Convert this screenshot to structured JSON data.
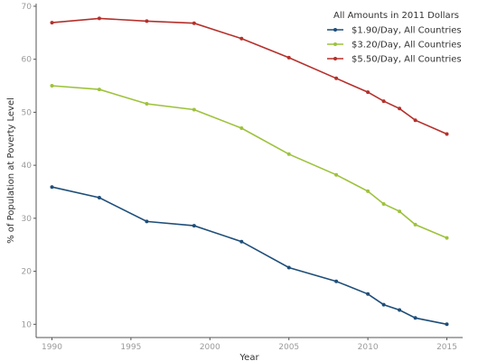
{
  "chart_data": {
    "type": "line",
    "title": "",
    "xlabel": "Year",
    "ylabel": "% of Population at Poverty Level",
    "xlim": [
      1989,
      2016
    ],
    "ylim": [
      7.5,
      70.5
    ],
    "xticks": [
      1990,
      1995,
      2000,
      2005,
      2010,
      2015
    ],
    "yticks": [
      10,
      20,
      30,
      40,
      50,
      60,
      70
    ],
    "grid": false,
    "legend": {
      "title": "All Amounts in 2011 Dollars",
      "placement": "top-right"
    },
    "series": [
      {
        "name": "$1.90/Day, All Countries",
        "color": "#1f4e79",
        "x": [
          1990,
          1993,
          1996,
          1999,
          2002,
          2005,
          2008,
          2010,
          2011,
          2012,
          2013,
          2015
        ],
        "y": [
          35.9,
          33.9,
          29.4,
          28.6,
          25.6,
          20.7,
          18.1,
          15.7,
          13.7,
          12.7,
          11.2,
          10.0
        ]
      },
      {
        "name": "$3.20/Day, All Countries",
        "color": "#9dc23b",
        "x": [
          1990,
          1993,
          1996,
          1999,
          2002,
          2005,
          2008,
          2010,
          2011,
          2012,
          2013,
          2015
        ],
        "y": [
          55.0,
          54.3,
          51.6,
          50.5,
          47.0,
          42.1,
          38.2,
          35.1,
          32.7,
          31.3,
          28.8,
          26.3
        ]
      },
      {
        "name": "$5.50/Day, All Countries",
        "color": "#b5302b",
        "x": [
          1990,
          1993,
          1996,
          1999,
          2002,
          2005,
          2008,
          2010,
          2011,
          2012,
          2013,
          2015
        ],
        "y": [
          66.9,
          67.7,
          67.2,
          66.8,
          63.9,
          60.3,
          56.4,
          53.8,
          52.1,
          50.7,
          48.5,
          45.9
        ]
      }
    ]
  }
}
